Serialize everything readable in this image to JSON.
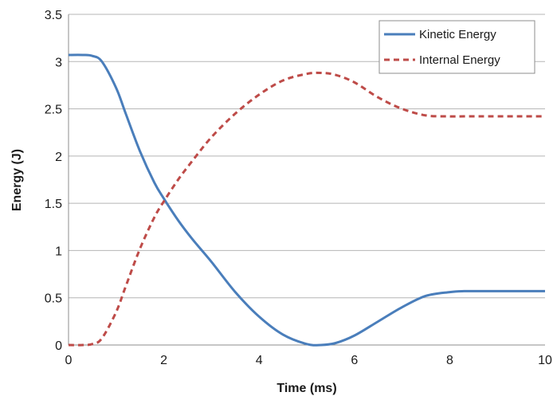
{
  "chart_data": {
    "type": "line",
    "title": "",
    "xlabel": "Time (ms)",
    "ylabel": "Energy (J)",
    "xlim": [
      0,
      10
    ],
    "ylim": [
      0,
      3.5
    ],
    "xticks": [
      0,
      2,
      4,
      6,
      8,
      10
    ],
    "xtick_labels": [
      "0",
      "2",
      "4",
      "6",
      "8",
      "10"
    ],
    "yticks": [
      0,
      0.5,
      1,
      1.5,
      2,
      2.5,
      3,
      3.5
    ],
    "ytick_labels": [
      "0",
      "0.5",
      "1",
      "1.5",
      "2",
      "2.5",
      "3",
      "3.5"
    ],
    "grid": "horizontal",
    "legend_position": "top-right",
    "series": [
      {
        "name": "Kinetic Energy",
        "color": "#4a7ebb",
        "style": "solid",
        "x": [
          0,
          0.3,
          0.5,
          0.7,
          1.0,
          1.2,
          1.5,
          1.8,
          2.0,
          2.3,
          2.6,
          3.0,
          3.5,
          4.0,
          4.5,
          5.0,
          5.3,
          5.6,
          6.0,
          6.5,
          7.0,
          7.5,
          8.0,
          8.3,
          8.6,
          9.0,
          9.5,
          10.0
        ],
        "y": [
          3.07,
          3.07,
          3.06,
          3.0,
          2.72,
          2.45,
          2.05,
          1.72,
          1.55,
          1.32,
          1.12,
          0.88,
          0.56,
          0.3,
          0.11,
          0.01,
          0.0,
          0.02,
          0.1,
          0.25,
          0.4,
          0.52,
          0.56,
          0.57,
          0.57,
          0.57,
          0.57,
          0.57
        ]
      },
      {
        "name": "Internal Energy",
        "color": "#be4b48",
        "style": "dashed",
        "x": [
          0,
          0.3,
          0.5,
          0.7,
          1.0,
          1.2,
          1.5,
          1.8,
          2.0,
          2.3,
          2.6,
          3.0,
          3.5,
          4.0,
          4.5,
          5.0,
          5.3,
          5.6,
          6.0,
          6.5,
          7.0,
          7.5,
          8.0,
          8.3,
          8.6,
          9.0,
          9.5,
          10.0
        ],
        "y": [
          0.0,
          0.0,
          0.01,
          0.07,
          0.35,
          0.62,
          1.02,
          1.35,
          1.52,
          1.75,
          1.95,
          2.2,
          2.45,
          2.65,
          2.8,
          2.87,
          2.88,
          2.86,
          2.78,
          2.62,
          2.5,
          2.43,
          2.42,
          2.42,
          2.42,
          2.42,
          2.42,
          2.42
        ]
      }
    ]
  }
}
